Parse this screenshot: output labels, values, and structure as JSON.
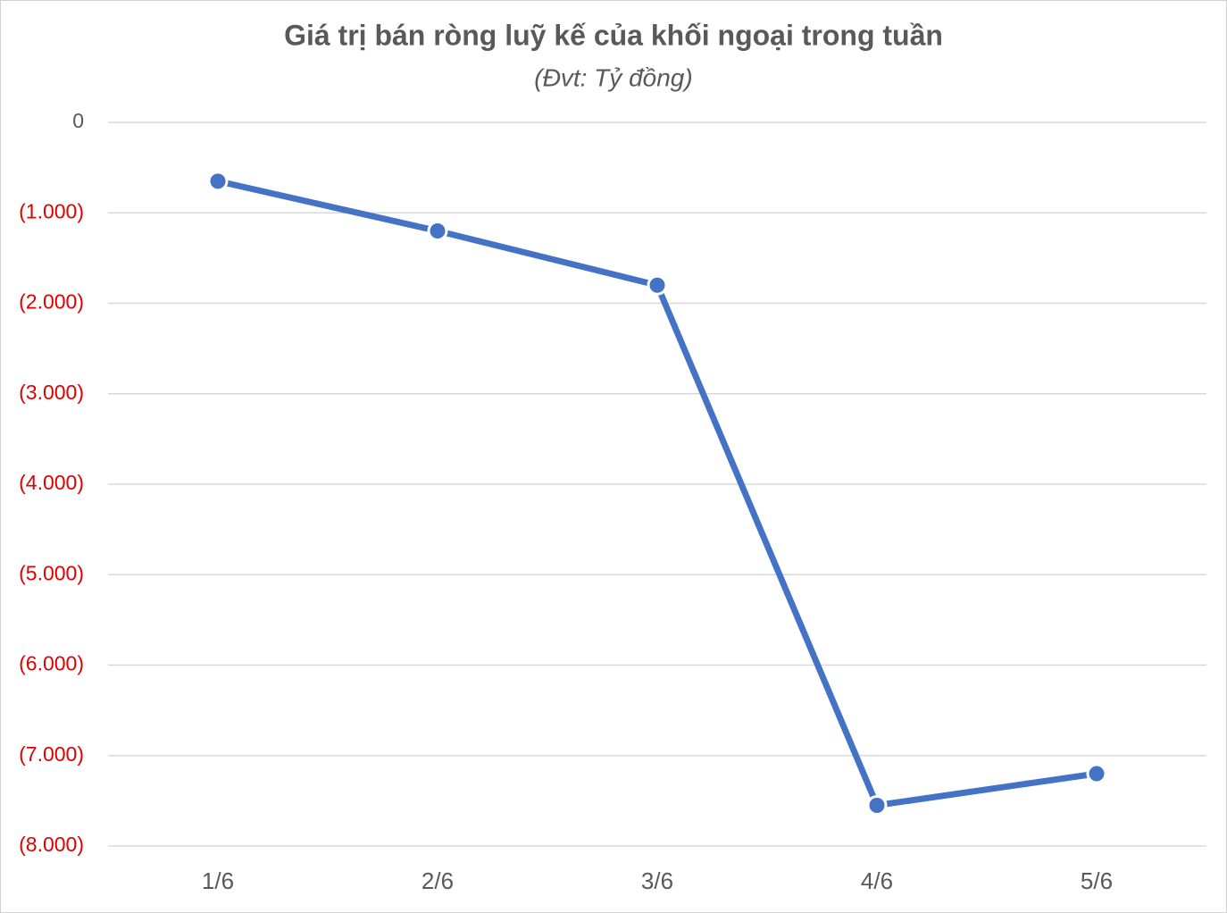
{
  "chart_data": {
    "type": "line",
    "title": "Giá trị bán ròng luỹ kế của khối ngoại trong tuần",
    "subtitle": "(Đvt: Tỷ đồng)",
    "categories": [
      "1/6",
      "2/6",
      "3/6",
      "4/6",
      "5/6"
    ],
    "series": [
      {
        "name": "Giá trị bán ròng luỹ kế",
        "color": "#4472c4",
        "values": [
          -650,
          -1200,
          -1800,
          -7550,
          -7200
        ]
      }
    ],
    "ylim": [
      -8000,
      0
    ],
    "yticks": [
      0,
      {
        "value": -1000,
        "label": "(1.000)"
      },
      {
        "value": -2000,
        "label": "(2.000)"
      },
      {
        "value": -3000,
        "label": "(3.000)"
      },
      {
        "value": -4000,
        "label": "(4.000)"
      },
      {
        "value": -5000,
        "label": "(5.000)"
      },
      {
        "value": -6000,
        "label": "(6.000)"
      },
      {
        "value": -7000,
        "label": "(7.000)"
      },
      {
        "value": -8000,
        "label": "(8.000)"
      }
    ],
    "grid": true,
    "negative_tick_color": "#e00000",
    "tick_color": "#595959"
  }
}
